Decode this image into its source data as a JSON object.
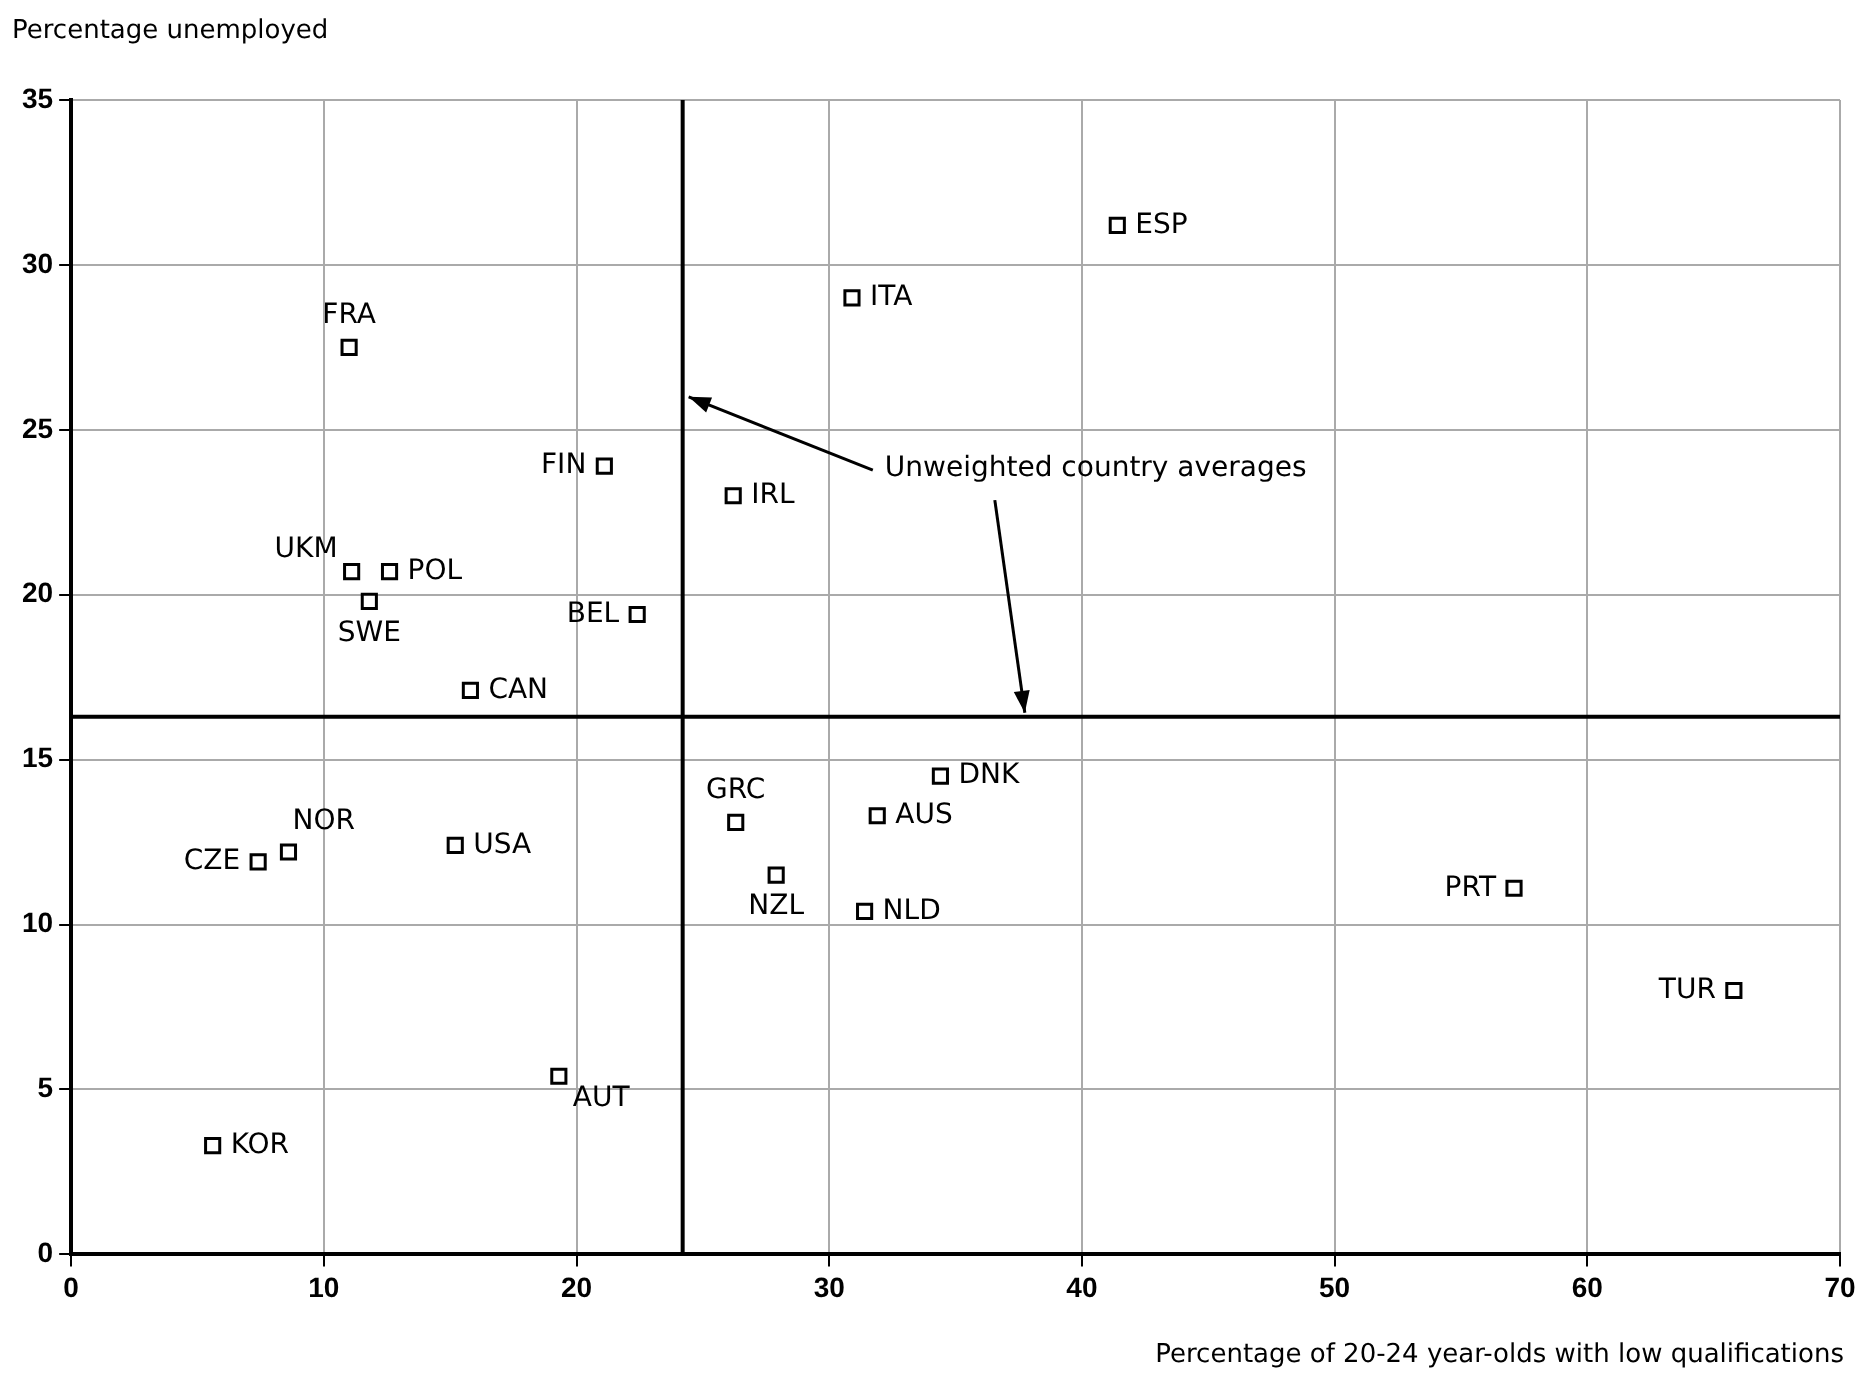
{
  "chart_data": {
    "type": "scatter",
    "xlabel": "Percentage of 20-24 year-olds with low qualifications",
    "ylabel": "Percentage unemployed",
    "xlim": [
      0,
      70
    ],
    "xticks": [
      0,
      10,
      20,
      30,
      40,
      50,
      60,
      70
    ],
    "ylim": [
      0,
      35
    ],
    "yticks": [
      0,
      5,
      10,
      15,
      20,
      25,
      30,
      35
    ],
    "grid": true,
    "legend": false,
    "marker": "square",
    "series": [
      {
        "name": "ESP",
        "color": "#000000",
        "x": [
          41.4
        ],
        "values": [
          31.2
        ]
      },
      {
        "name": "ITA",
        "color": "#000000",
        "x": [
          30.9
        ],
        "values": [
          29.0
        ]
      },
      {
        "name": "FRA",
        "color": "#000000",
        "x": [
          11.0
        ],
        "values": [
          27.5
        ]
      },
      {
        "name": "FIN",
        "color": "#000000",
        "x": [
          21.1
        ],
        "values": [
          23.9
        ]
      },
      {
        "name": "IRL",
        "color": "#000000",
        "x": [
          26.2
        ],
        "values": [
          23.0
        ]
      },
      {
        "name": "UKM",
        "color": "#000000",
        "x": [
          11.1
        ],
        "values": [
          20.7
        ]
      },
      {
        "name": "POL",
        "color": "#000000",
        "x": [
          12.6
        ],
        "values": [
          20.7
        ]
      },
      {
        "name": "SWE",
        "color": "#000000",
        "x": [
          11.8
        ],
        "values": [
          19.8
        ]
      },
      {
        "name": "BEL",
        "color": "#000000",
        "x": [
          22.4
        ],
        "values": [
          19.4
        ]
      },
      {
        "name": "CAN",
        "color": "#000000",
        "x": [
          15.8
        ],
        "values": [
          17.1
        ]
      },
      {
        "name": "DNK",
        "color": "#000000",
        "x": [
          34.4
        ],
        "values": [
          14.5
        ]
      },
      {
        "name": "AUS",
        "color": "#000000",
        "x": [
          31.9
        ],
        "values": [
          13.3
        ]
      },
      {
        "name": "GRC",
        "color": "#000000",
        "x": [
          26.3
        ],
        "values": [
          13.1
        ]
      },
      {
        "name": "USA",
        "color": "#000000",
        "x": [
          15.2
        ],
        "values": [
          12.4
        ]
      },
      {
        "name": "NOR",
        "color": "#000000",
        "x": [
          8.6
        ],
        "values": [
          12.2
        ]
      },
      {
        "name": "CZE",
        "color": "#000000",
        "x": [
          7.4
        ],
        "values": [
          11.9
        ]
      },
      {
        "name": "NZL",
        "color": "#000000",
        "x": [
          27.9
        ],
        "values": [
          11.5
        ]
      },
      {
        "name": "PRT",
        "color": "#000000",
        "x": [
          57.1
        ],
        "values": [
          11.1
        ]
      },
      {
        "name": "NLD",
        "color": "#000000",
        "x": [
          31.4
        ],
        "values": [
          10.4
        ]
      },
      {
        "name": "TUR",
        "color": "#000000",
        "x": [
          65.8
        ],
        "values": [
          8.0
        ]
      },
      {
        "name": "AUT",
        "color": "#000000",
        "x": [
          19.3
        ],
        "values": [
          5.4
        ]
      },
      {
        "name": "KOR",
        "color": "#000000",
        "x": [
          5.6
        ],
        "values": [
          3.3
        ]
      }
    ],
    "ref_lines": [
      {
        "axis": "x",
        "value": 24.2,
        "color": "#000000"
      },
      {
        "axis": "y",
        "value": 16.3,
        "color": "#000000"
      }
    ],
    "annotations": [
      {
        "text": "Unweighted country averages",
        "x": 24.2,
        "y": 26
      }
    ]
  }
}
